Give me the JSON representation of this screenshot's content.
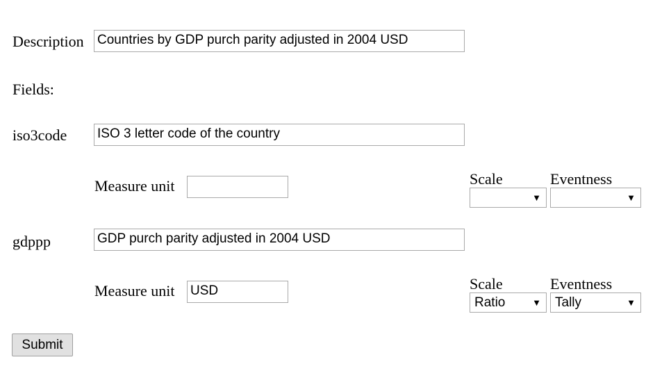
{
  "form": {
    "description_label": "Description",
    "description_value": "Countries by GDP purch parity adjusted in 2004 USD",
    "fields_label": "Fields:",
    "submit_label": "Submit"
  },
  "fields": [
    {
      "name": "iso3code",
      "description": "ISO 3 letter code of the country",
      "measure_unit_label": "Measure unit",
      "measure_unit_value": "",
      "scale_label": "Scale",
      "scale_value": "",
      "eventness_label": "Eventness",
      "eventness_value": "",
      "dropdown_icon": "chevron-down-icon"
    },
    {
      "name": "gdppp",
      "description": "GDP purch parity adjusted in 2004 USD",
      "measure_unit_label": "Measure unit",
      "measure_unit_value": "USD",
      "scale_label": "Scale",
      "scale_value": "Ratio",
      "eventness_label": "Eventness",
      "eventness_value": "Tally",
      "dropdown_icon": "chevron-down-icon"
    }
  ]
}
